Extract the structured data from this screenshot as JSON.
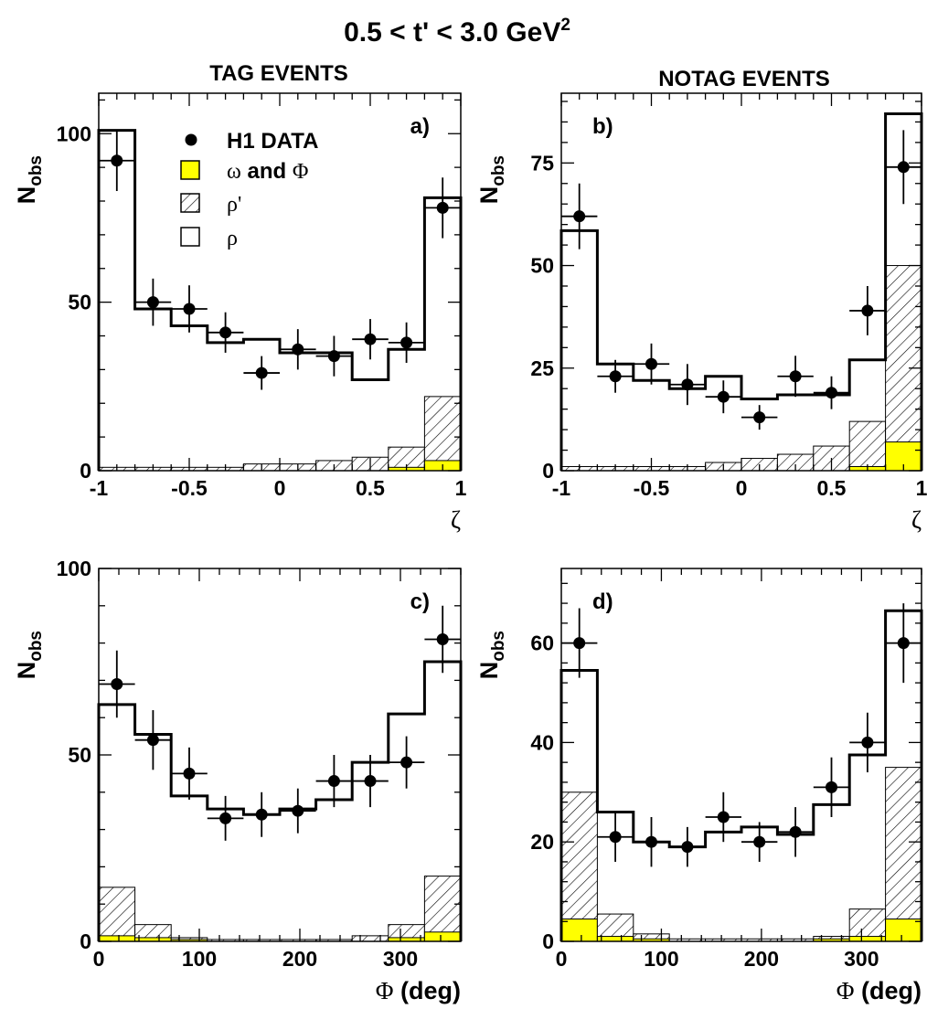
{
  "title_prefix": "0.5 < t' < 3.0 GeV",
  "title_sup": "2",
  "column_titles": [
    "TAG EVENTS",
    "NOTAG EVENTS"
  ],
  "legend": {
    "data": "H1 DATA",
    "omega_phi_greek": "ω",
    "omega_phi_mid": " and ",
    "omega_phi_greek2": "Φ",
    "rhoprime": "ρ'",
    "rho": "ρ"
  },
  "colors": {
    "omega_phi_fill": "#ffff00",
    "hatch": "#000000",
    "line": "#000000"
  },
  "chart_data": [
    {
      "id": "a",
      "panel_label": "a)",
      "type": "bar",
      "ylabel_main": "N",
      "ylabel_sub": "obs",
      "xlabel_greek": "ζ",
      "xlabel_rest": "",
      "xlim": [
        -1,
        1
      ],
      "ylim": [
        0,
        112
      ],
      "x_ticks": [
        -1,
        -0.5,
        0,
        0.5,
        1
      ],
      "x_tick_labels": [
        "-1",
        "-0.5",
        "0",
        "0.5",
        "1"
      ],
      "y_ticks": [
        0,
        50,
        100
      ],
      "y_tick_labels": [
        "0",
        "50",
        "100"
      ],
      "bin_edges": [
        -1,
        -0.8,
        -0.6,
        -0.4,
        -0.2,
        0,
        0.2,
        0.4,
        0.6,
        0.8,
        1
      ],
      "mc_total": [
        101,
        48,
        43,
        38,
        39,
        35,
        35,
        27,
        36,
        81
      ],
      "rhoprime": [
        1,
        1,
        1,
        1,
        2,
        2,
        3,
        4,
        7,
        22
      ],
      "omega_phi": [
        0,
        0,
        0,
        0,
        0,
        0,
        0,
        0,
        1,
        3
      ],
      "data": {
        "x": [
          -0.9,
          -0.7,
          -0.5,
          -0.3,
          -0.1,
          0.1,
          0.3,
          0.5,
          0.7,
          0.9
        ],
        "y": [
          92,
          50,
          48,
          41,
          29,
          36,
          34,
          39,
          38,
          78
        ],
        "err": [
          9,
          7,
          7,
          6,
          5,
          6,
          6,
          6,
          6,
          9
        ]
      },
      "show_legend": true
    },
    {
      "id": "b",
      "panel_label": "b)",
      "type": "bar",
      "ylabel_main": "N",
      "ylabel_sub": "obs",
      "xlabel_greek": "ζ",
      "xlabel_rest": "",
      "xlim": [
        -1,
        1
      ],
      "ylim": [
        0,
        92
      ],
      "x_ticks": [
        -1,
        -0.5,
        0,
        0.5,
        1
      ],
      "x_tick_labels": [
        "-1",
        "-0.5",
        "0",
        "0.5",
        "1"
      ],
      "y_ticks": [
        0,
        25,
        50,
        75
      ],
      "y_tick_labels": [
        "0",
        "25",
        "50",
        "75"
      ],
      "bin_edges": [
        -1,
        -0.8,
        -0.6,
        -0.4,
        -0.2,
        0,
        0.2,
        0.4,
        0.6,
        0.8,
        1
      ],
      "mc_total": [
        58.5,
        26,
        22,
        20,
        23,
        17.5,
        18.5,
        18.5,
        27,
        87
      ],
      "rhoprime": [
        1,
        1,
        1,
        1,
        2,
        3,
        4,
        6,
        12,
        50
      ],
      "omega_phi": [
        0,
        0,
        0,
        0,
        0,
        0,
        0,
        0,
        1,
        7
      ],
      "data": {
        "x": [
          -0.9,
          -0.7,
          -0.5,
          -0.3,
          -0.1,
          0.1,
          0.3,
          0.5,
          0.7,
          0.9
        ],
        "y": [
          62,
          23,
          26,
          21,
          18,
          13,
          23,
          19,
          39,
          74
        ],
        "err": [
          8,
          4,
          5,
          5,
          4,
          3,
          5,
          4,
          6,
          9
        ]
      },
      "show_legend": false
    },
    {
      "id": "c",
      "panel_label": "c)",
      "type": "bar",
      "ylabel_main": "N",
      "ylabel_sub": "obs",
      "xlabel_greek": "Φ",
      "xlabel_rest": " (deg)",
      "xlim": [
        0,
        360
      ],
      "ylim": [
        0,
        100
      ],
      "x_ticks": [
        0,
        100,
        200,
        300
      ],
      "x_tick_labels": [
        "0",
        "100",
        "200",
        "300"
      ],
      "y_ticks": [
        0,
        50,
        100
      ],
      "y_tick_labels": [
        "0",
        "50",
        "100"
      ],
      "bin_edges": [
        0,
        36,
        72,
        108,
        144,
        180,
        216,
        252,
        288,
        324,
        360
      ],
      "mc_total": [
        63.5,
        55.5,
        39,
        35.5,
        34,
        35.5,
        38,
        48,
        61,
        75
      ],
      "rhoprime": [
        14.5,
        4.5,
        1,
        0.5,
        0.5,
        0.5,
        0.5,
        1.5,
        4.5,
        17.5
      ],
      "omega_phi": [
        1.5,
        1,
        0.5,
        0,
        0,
        0,
        0,
        0,
        1,
        2.5
      ],
      "data": {
        "x": [
          18,
          54,
          90,
          126,
          162,
          198,
          234,
          270,
          306,
          342
        ],
        "y": [
          69,
          54,
          45,
          33,
          34,
          35,
          43,
          43,
          48,
          81
        ],
        "err": [
          9,
          8,
          7,
          6,
          6,
          6,
          7,
          7,
          7,
          9
        ]
      },
      "show_legend": false
    },
    {
      "id": "d",
      "panel_label": "d)",
      "type": "bar",
      "ylabel_main": "N",
      "ylabel_sub": "obs",
      "xlabel_greek": "Φ",
      "xlabel_rest": " (deg)",
      "xlim": [
        0,
        360
      ],
      "ylim": [
        0,
        75
      ],
      "x_ticks": [
        0,
        100,
        200,
        300
      ],
      "x_tick_labels": [
        "0",
        "100",
        "200",
        "300"
      ],
      "y_ticks": [
        0,
        20,
        40,
        60
      ],
      "y_tick_labels": [
        "0",
        "20",
        "40",
        "60"
      ],
      "bin_edges": [
        0,
        36,
        72,
        108,
        144,
        180,
        216,
        252,
        288,
        324,
        360
      ],
      "mc_total": [
        54.5,
        26,
        20,
        19,
        22,
        23,
        21.5,
        27.5,
        37.5,
        66.5
      ],
      "rhoprime": [
        30,
        5.5,
        1.5,
        0.5,
        0.5,
        0.5,
        0.5,
        1,
        6.5,
        35
      ],
      "omega_phi": [
        4.5,
        1,
        0.5,
        0,
        0,
        0,
        0,
        0.5,
        1,
        4.5
      ],
      "data": {
        "x": [
          18,
          54,
          90,
          126,
          162,
          198,
          234,
          270,
          306,
          342
        ],
        "y": [
          60,
          21,
          20,
          19,
          25,
          20,
          22,
          31,
          40,
          60
        ],
        "err": [
          7,
          5,
          5,
          4,
          5,
          4,
          5,
          6,
          6,
          8
        ]
      },
      "show_legend": false
    }
  ]
}
